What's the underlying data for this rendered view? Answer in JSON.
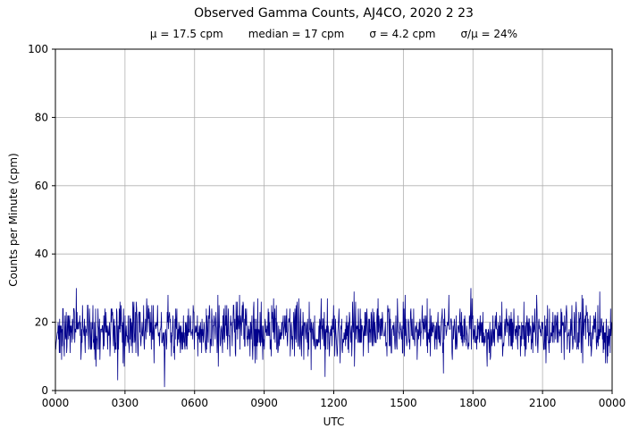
{
  "title": "Observed Gamma Counts, AJ4CO, 2020 2 23",
  "stats": {
    "mu": "μ = 17.5 cpm",
    "median": "median = 17 cpm",
    "sigma": "σ = 4.2 cpm",
    "ratio": "σ/μ = 24%"
  },
  "chart_data": {
    "type": "line",
    "title": "Observed Gamma Counts, AJ4CO, 2020 2 23",
    "subtitle": "μ = 17.5 cpm   median = 17 cpm   σ = 4.2 cpm   σ/μ = 24%",
    "xlabel": "UTC",
    "ylabel": "Counts per Minute (cpm)",
    "ylim": [
      0,
      100
    ],
    "y_ticks": [
      0,
      20,
      40,
      60,
      80,
      100
    ],
    "x_ticks_minutes": [
      0,
      180,
      360,
      540,
      720,
      900,
      1080,
      1260,
      1440
    ],
    "x_tick_labels": [
      "0000",
      "0300",
      "0600",
      "0900",
      "1200",
      "1500",
      "1800",
      "2100",
      "0000"
    ],
    "xlim_minutes": [
      0,
      1440
    ],
    "grid": true,
    "legend": "none",
    "line_color": "#00008b",
    "grid_color": "#b0b0b0",
    "frame_color": "#000000",
    "series": [
      {
        "name": "observed-gamma-counts",
        "summary": {
          "n_points": 1440,
          "sample_interval_minutes": 1,
          "mean_cpm": 17.5,
          "median_cpm": 17,
          "sigma_cpm": 4.2,
          "approx_min_cpm": 5,
          "approx_max_cpm": 32
        },
        "generator": {
          "distribution": "normal",
          "mean": 17.5,
          "sigma": 4.2,
          "round_to_integer": true,
          "clamp": [
            0,
            100
          ],
          "seed": 20200223
        }
      }
    ]
  }
}
